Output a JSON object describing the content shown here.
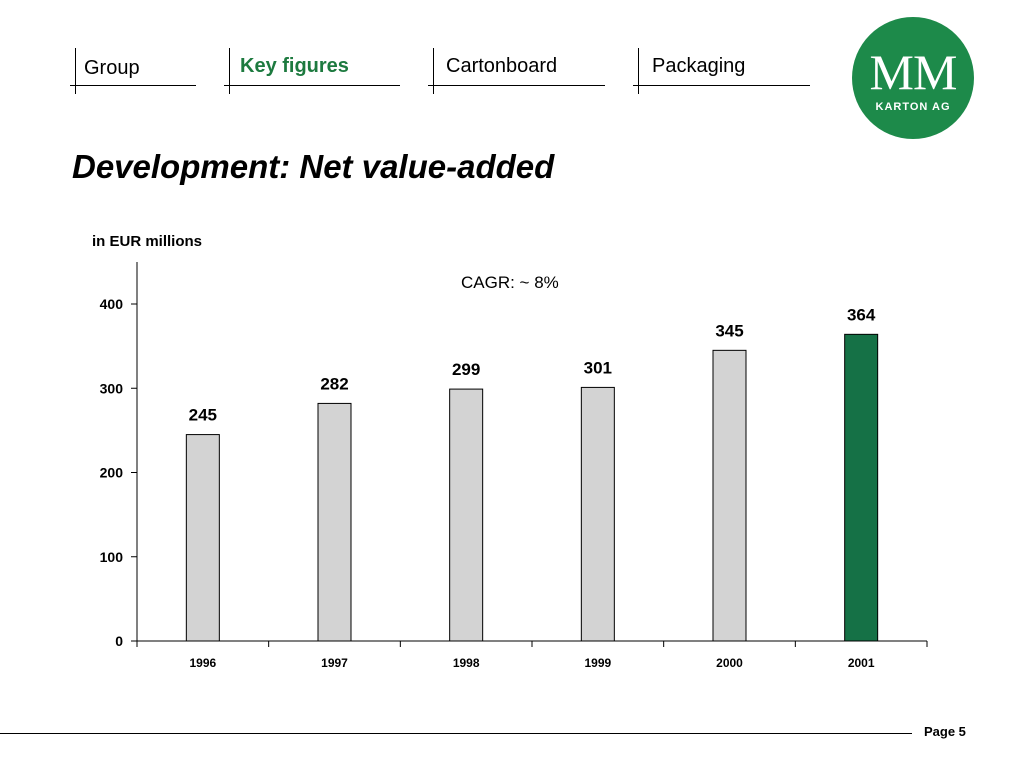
{
  "nav": {
    "tabs": [
      {
        "label": "Group",
        "active": false
      },
      {
        "label": "Key figures",
        "active": true
      },
      {
        "label": "Cartonboard",
        "active": false
      },
      {
        "label": "Packaging",
        "active": false
      }
    ]
  },
  "logo": {
    "main": "MM",
    "sub": "KARTON AG",
    "color": "#1d8a4a"
  },
  "title": "Development: Net value-added",
  "unit_label": "in  EUR millions",
  "annotation": "CAGR: ~ 8%",
  "footer": {
    "page": "Page 5"
  },
  "chart_data": {
    "type": "bar",
    "categories": [
      "1996",
      "1997",
      "1998",
      "1999",
      "2000",
      "2001"
    ],
    "values": [
      245,
      282,
      299,
      301,
      345,
      364
    ],
    "data_labels": [
      "245",
      "282",
      "299",
      "301",
      "345",
      "364"
    ],
    "yticks": [
      0,
      100,
      200,
      300,
      400
    ],
    "ylim": [
      0,
      450
    ],
    "bar_colors": [
      "#d3d3d3",
      "#d3d3d3",
      "#d3d3d3",
      "#d3d3d3",
      "#d3d3d3",
      "#157146"
    ],
    "title": "",
    "xlabel": "",
    "ylabel": "",
    "grid": false
  }
}
